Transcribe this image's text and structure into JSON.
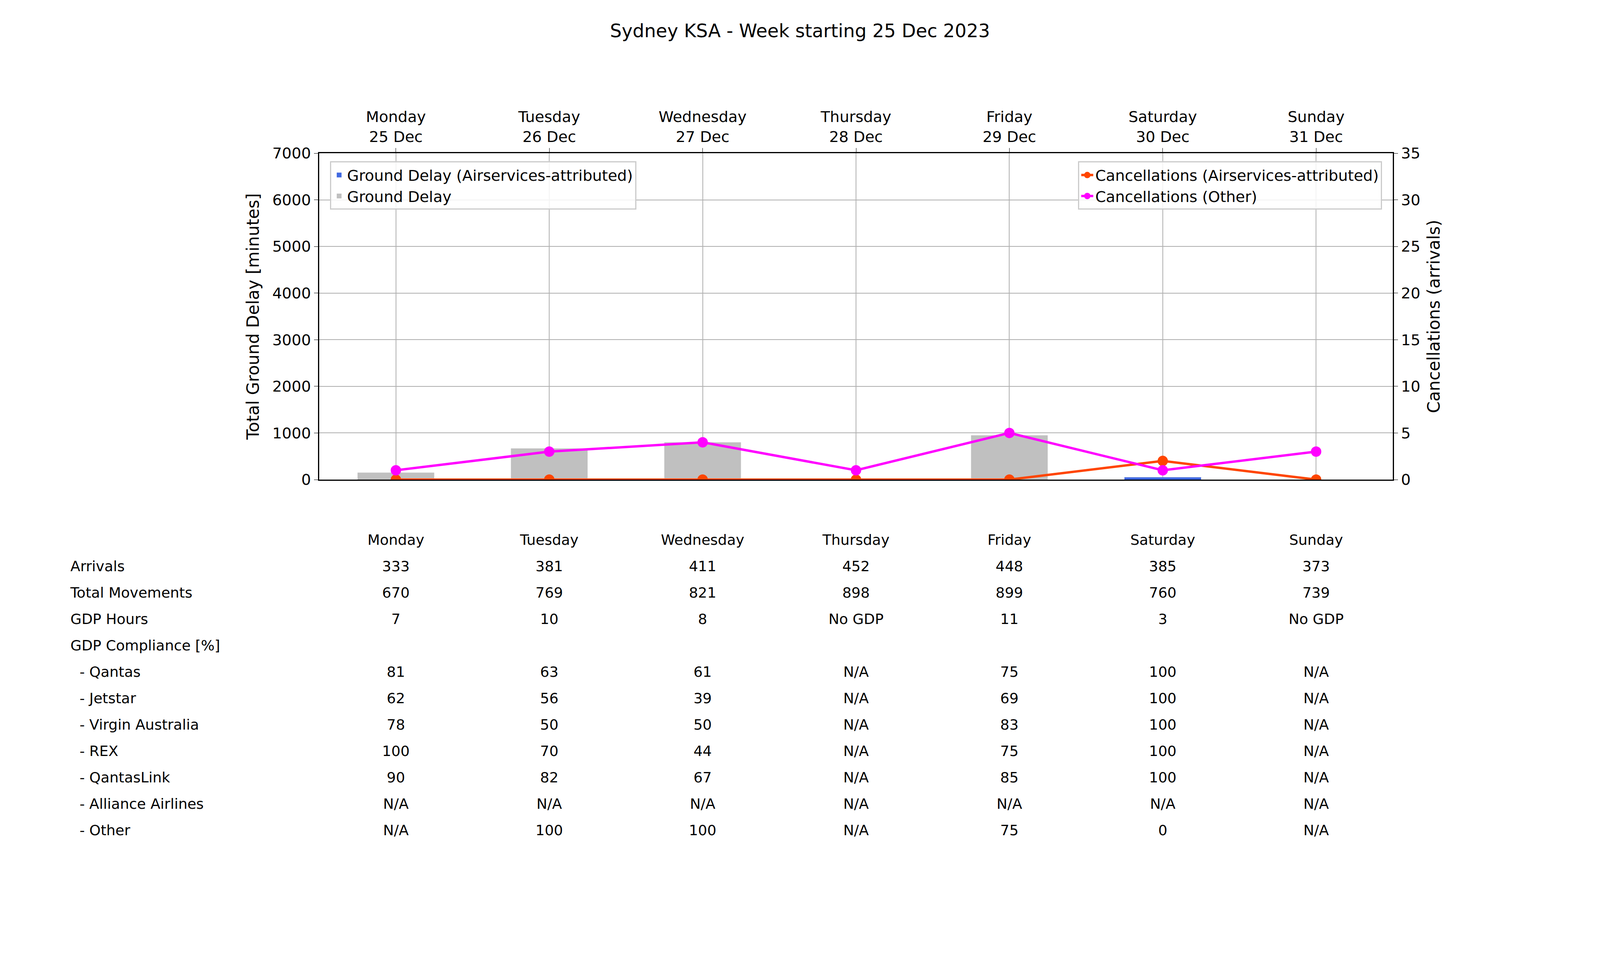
{
  "chart_data": {
    "type": "bar",
    "title": "Sydney KSA - Week starting 25 Dec 2023",
    "categories": [
      "Monday\n25 Dec",
      "Tuesday\n26 Dec",
      "Wednesday\n27 Dec",
      "Thursday\n28 Dec",
      "Friday\n29 Dec",
      "Saturday\n30 Dec",
      "Sunday\n31 Dec"
    ],
    "y_label": "Total Ground Delay [minutes]",
    "y2_label": "Cancellations (arrivals)",
    "ylim": [
      0,
      7000
    ],
    "yticks": [
      0,
      1000,
      2000,
      3000,
      4000,
      5000,
      6000,
      7000
    ],
    "y2lim": [
      0,
      35
    ],
    "y2ticks": [
      0,
      5,
      10,
      15,
      20,
      25,
      30,
      35
    ],
    "grid": true,
    "series": [
      {
        "name": "Ground Delay (Airservices-attributed)",
        "type": "bar",
        "color": "#4169e1",
        "legend": "upper left",
        "values": [
          0,
          0,
          0,
          0,
          0,
          50,
          0
        ]
      },
      {
        "name": "Ground Delay",
        "type": "bar",
        "color": "#c0c0c0",
        "legend": "upper left",
        "values": [
          150,
          670,
          800,
          0,
          950,
          50,
          0
        ]
      },
      {
        "name": "Cancellations (Airservices-attributed)",
        "type": "line",
        "axis": "y2",
        "color": "#ff4500",
        "marker": "circle",
        "legend": "upper right",
        "values": [
          0,
          0,
          0,
          0,
          0,
          2,
          0
        ]
      },
      {
        "name": "Cancellations (Other)",
        "type": "line",
        "axis": "y2",
        "color": "#ff00ff",
        "marker": "circle",
        "legend": "upper right",
        "values": [
          1,
          3,
          4,
          1,
          5,
          1,
          3
        ]
      }
    ],
    "table": {
      "columns": [
        "Monday",
        "Tuesday",
        "Wednesday",
        "Thursday",
        "Friday",
        "Saturday",
        "Sunday"
      ],
      "rows": [
        {
          "label": "Arrivals",
          "values": [
            333,
            381,
            411,
            452,
            448,
            385,
            373
          ]
        },
        {
          "label": "Total Movements",
          "values": [
            670,
            769,
            821,
            898,
            899,
            760,
            739
          ]
        },
        {
          "label": "GDP Hours",
          "values": [
            7,
            10,
            8,
            "No GDP",
            11,
            3,
            "No GDP"
          ]
        },
        {
          "label": "GDP Compliance [%]",
          "values": []
        },
        {
          "label": "  - Qantas",
          "values": [
            81,
            63,
            61,
            "N/A",
            75,
            100,
            "N/A"
          ]
        },
        {
          "label": "  - Jetstar",
          "values": [
            62,
            56,
            39,
            "N/A",
            69,
            100,
            "N/A"
          ]
        },
        {
          "label": "  - Virgin Australia",
          "values": [
            78,
            50,
            50,
            "N/A",
            83,
            100,
            "N/A"
          ]
        },
        {
          "label": "  - REX",
          "values": [
            100,
            70,
            44,
            "N/A",
            75,
            100,
            "N/A"
          ]
        },
        {
          "label": "  - QantasLink",
          "values": [
            90,
            82,
            67,
            "N/A",
            85,
            100,
            "N/A"
          ]
        },
        {
          "label": "  - Alliance Airlines",
          "values": [
            "N/A",
            "N/A",
            "N/A",
            "N/A",
            "N/A",
            "N/A",
            "N/A"
          ]
        },
        {
          "label": "  - Other",
          "values": [
            "N/A",
            100,
            100,
            "N/A",
            75,
            0,
            "N/A"
          ]
        }
      ]
    }
  }
}
